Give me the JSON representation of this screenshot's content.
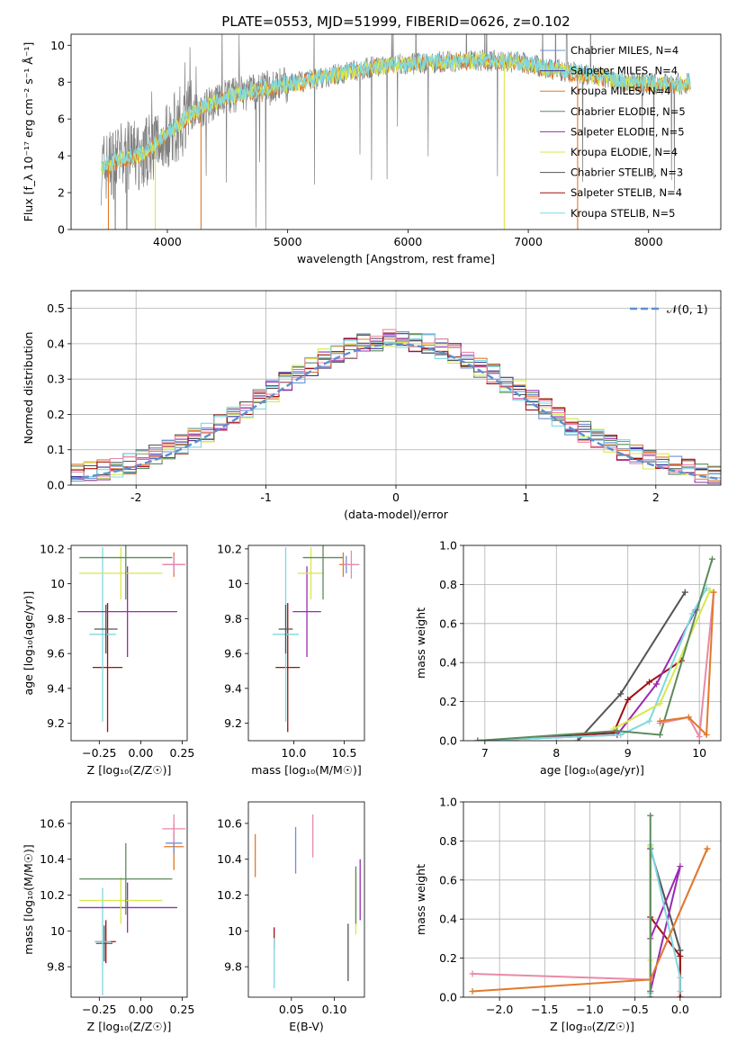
{
  "title": "PLATE=0553, MJD=51999, FIBERID=0626, z=0.102",
  "colors": [
    "#6f8fd8",
    "#3a3a9a",
    "#e07a2a",
    "#5c8a5c",
    "#9a2ab0",
    "#d8e84a",
    "#555555",
    "#a01010",
    "#7fd8e0",
    "#e88aa8"
  ],
  "chart_data": [
    {
      "id": "spectrum",
      "type": "line",
      "xlabel": "wavelength [Angstrom, rest frame]",
      "ylabel": "Flux [f_λ 10⁻¹⁷ erg cm⁻² s⁻¹ Å⁻¹]",
      "xlim": [
        3200,
        8600
      ],
      "ylim": [
        0,
        10.6
      ],
      "xticks": [
        4000,
        5000,
        6000,
        7000,
        8000
      ],
      "yticks": [
        0,
        2,
        4,
        6,
        8,
        10
      ],
      "legend_position": "right",
      "legend": [
        "Chabrier MILES, N_SSP=4",
        "Salpeter MILES, N_SSP=4",
        "Kroupa MILES, N_SSP=4",
        "Chabrier ELODIE, N_SSP=5",
        "Salpeter ELODIE, N_SSP=5",
        "Kroupa ELODIE, N_SSP=4",
        "Chabrier STELIB, N_SSP=3",
        "Salpeter STELIB, N_SSP=4",
        "Kroupa STELIB, N_SSP=5"
      ],
      "legend_colors": [
        "#6f8fd8",
        "#3a3a9a",
        "#e07a2a",
        "#5c8a5c",
        "#9a2ab0",
        "#d8e84a",
        "#555555",
        "#a01010",
        "#7fd8e0"
      ],
      "continuum": {
        "x": [
          3450,
          3600,
          3800,
          4000,
          4200,
          4500,
          4800,
          5100,
          5400,
          5700,
          6000,
          6300,
          6600,
          6900,
          7200,
          7500,
          7800,
          8100,
          8350
        ],
        "y": [
          3.3,
          3.8,
          4.1,
          5.2,
          6.3,
          7.2,
          7.6,
          8.0,
          8.4,
          8.8,
          9.0,
          9.1,
          9.2,
          9.1,
          8.7,
          8.4,
          8.0,
          7.9,
          7.9
        ]
      }
    },
    {
      "id": "residuals",
      "type": "line",
      "xlabel": "(data-model)/error",
      "ylabel": "Normed distribution",
      "xlim": [
        -2.5,
        2.5
      ],
      "ylim": [
        0,
        0.55
      ],
      "xticks": [
        -2,
        -1,
        0,
        1,
        2
      ],
      "yticks": [
        0.0,
        0.1,
        0.2,
        0.3,
        0.4,
        0.5
      ],
      "grid": true,
      "legend": [
        "𝒩(0, 1)"
      ],
      "legend_position": "top-right",
      "normal_dist": {
        "mu": 0,
        "sigma": 1
      }
    },
    {
      "id": "age_vs_Z",
      "type": "scatter",
      "xlabel": "Z [log₁₀(Z/Z☉)]",
      "ylabel": "age  [log₁₀(age/yr)]",
      "xlim": [
        -0.42,
        0.28
      ],
      "ylim": [
        9.1,
        10.22
      ],
      "xticks": [
        -0.25,
        0.0,
        0.25
      ],
      "xticklabels": [
        "−0.25",
        "0.00",
        "0.25"
      ],
      "yticks": [
        9.2,
        9.4,
        9.6,
        9.8,
        10.0,
        10.2
      ],
      "points": [
        {
          "color": "#a01010",
          "x": -0.2,
          "xerr": 0.09,
          "y": 9.52,
          "yerr": 0.37
        },
        {
          "color": "#7fd8e0",
          "x": -0.23,
          "xerr": 0.08,
          "y": 9.71,
          "yerr": 0.5
        },
        {
          "color": "#555555",
          "x": -0.21,
          "xerr": 0.07,
          "y": 9.74,
          "yerr": 0.14
        },
        {
          "color": "#9a2ab0",
          "x": -0.08,
          "xerr": 0.3,
          "y": 9.84,
          "yerr": 0.26
        },
        {
          "color": "#d8e84a",
          "x": -0.12,
          "xerr": 0.25,
          "y": 10.06,
          "yerr": 0.15
        },
        {
          "color": "#5c8a5c",
          "x": -0.09,
          "xerr": 0.28,
          "y": 10.15,
          "yerr": 0.24
        },
        {
          "color": "#e07a2a",
          "x": 0.2,
          "xerr": 0.06,
          "y": 10.11,
          "yerr": 0.07
        },
        {
          "color": "#6f8fd8",
          "x": 0.2,
          "xerr": 0.05,
          "y": 10.11,
          "yerr": 0.05
        },
        {
          "color": "#e88aa8",
          "x": 0.2,
          "xerr": 0.07,
          "y": 10.11,
          "yerr": 0.05
        }
      ]
    },
    {
      "id": "age_vs_mass",
      "type": "scatter",
      "xlabel": "mass [log₁₀(M/M☉)]",
      "ylabel": "",
      "xlim": [
        9.55,
        10.7
      ],
      "ylim": [
        9.1,
        10.22
      ],
      "xticks": [
        10.0,
        10.5
      ],
      "xticklabels": [
        "10.0",
        "10.5"
      ],
      "yticks": [
        9.2,
        9.4,
        9.6,
        9.8,
        10.0,
        10.2
      ],
      "points": [
        {
          "color": "#a01010",
          "x": 9.94,
          "xerr": 0.12,
          "y": 9.52,
          "yerr": 0.37
        },
        {
          "color": "#7fd8e0",
          "x": 9.92,
          "xerr": 0.13,
          "y": 9.71,
          "yerr": 0.5
        },
        {
          "color": "#555555",
          "x": 9.92,
          "xerr": 0.07,
          "y": 9.74,
          "yerr": 0.14
        },
        {
          "color": "#9a2ab0",
          "x": 10.13,
          "xerr": 0.14,
          "y": 9.84,
          "yerr": 0.26
        },
        {
          "color": "#d8e84a",
          "x": 10.17,
          "xerr": 0.13,
          "y": 10.06,
          "yerr": 0.15
        },
        {
          "color": "#5c8a5c",
          "x": 10.29,
          "xerr": 0.2,
          "y": 10.15,
          "yerr": 0.24
        },
        {
          "color": "#e07a2a",
          "x": 10.49,
          "xerr": 0.04,
          "y": 10.11,
          "yerr": 0.07
        },
        {
          "color": "#6f8fd8",
          "x": 10.52,
          "xerr": 0.03,
          "y": 10.11,
          "yerr": 0.05
        },
        {
          "color": "#e88aa8",
          "x": 10.57,
          "xerr": 0.08,
          "y": 10.11,
          "yerr": 0.08
        }
      ]
    },
    {
      "id": "weight_vs_age",
      "type": "line",
      "xlabel": "age  [log₁₀(age/yr)]",
      "ylabel": "mass weight",
      "xlim": [
        6.7,
        10.3
      ],
      "ylim": [
        0,
        1.0
      ],
      "xticks": [
        7,
        8,
        9,
        10
      ],
      "yticks": [
        0.0,
        0.2,
        0.4,
        0.6,
        0.8,
        1.0
      ],
      "grid": true,
      "series": [
        {
          "color": "#555555",
          "x": [
            8.3,
            8.9,
            9.8
          ],
          "y": [
            0.0,
            0.24,
            0.76
          ]
        },
        {
          "color": "#a01010",
          "x": [
            6.9,
            8.8,
            9.0,
            9.3,
            9.75
          ],
          "y": [
            0.0,
            0.04,
            0.21,
            0.3,
            0.41
          ]
        },
        {
          "color": "#9a2ab0",
          "x": [
            6.9,
            8.85,
            9.4,
            9.95
          ],
          "y": [
            0.0,
            0.03,
            0.29,
            0.67
          ]
        },
        {
          "color": "#7fd8e0",
          "x": [
            6.9,
            8.9,
            9.3,
            9.9,
            10.1
          ],
          "y": [
            0.0,
            0.03,
            0.1,
            0.65,
            0.78
          ]
        },
        {
          "color": "#d8e84a",
          "x": [
            8.8,
            9.45,
            10.15
          ],
          "y": [
            0.06,
            0.19,
            0.77
          ]
        },
        {
          "color": "#5c8a5c",
          "x": [
            6.9,
            8.85,
            9.45,
            10.18
          ],
          "y": [
            0.0,
            0.05,
            0.03,
            0.93
          ]
        },
        {
          "color": "#e88aa8",
          "x": [
            9.45,
            9.85,
            10.0,
            10.2
          ],
          "y": [
            0.09,
            0.12,
            0.02,
            0.76
          ]
        },
        {
          "color": "#e07a2a",
          "x": [
            9.45,
            9.85,
            10.1,
            10.2
          ],
          "y": [
            0.1,
            0.12,
            0.03,
            0.76
          ]
        }
      ]
    },
    {
      "id": "mass_vs_Z",
      "type": "scatter",
      "xlabel": "Z [log₁₀(Z/Z☉)]",
      "ylabel": "mass [log₁₀(M/M☉)]",
      "xlim": [
        -0.42,
        0.28
      ],
      "ylim": [
        9.63,
        10.72
      ],
      "xticks": [
        -0.25,
        0.0,
        0.25
      ],
      "xticklabels": [
        "−0.25",
        "0.00",
        "0.25"
      ],
      "yticks": [
        9.8,
        10.0,
        10.2,
        10.4,
        10.6
      ],
      "points": [
        {
          "color": "#a01010",
          "x": -0.21,
          "xerr": 0.06,
          "y": 9.94,
          "yerr": 0.12
        },
        {
          "color": "#555555",
          "x": -0.22,
          "xerr": 0.05,
          "y": 9.93,
          "yerr": 0.1
        },
        {
          "color": "#7fd8e0",
          "x": -0.23,
          "xerr": 0.05,
          "y": 9.94,
          "yerr": 0.3
        },
        {
          "color": "#9a2ab0",
          "x": -0.08,
          "xerr": 0.3,
          "y": 10.13,
          "yerr": 0.14
        },
        {
          "color": "#d8e84a",
          "x": -0.12,
          "xerr": 0.25,
          "y": 10.17,
          "yerr": 0.13
        },
        {
          "color": "#5c8a5c",
          "x": -0.09,
          "xerr": 0.28,
          "y": 10.29,
          "yerr": 0.2
        },
        {
          "color": "#e07a2a",
          "x": 0.2,
          "xerr": 0.06,
          "y": 10.47,
          "yerr": 0.13
        },
        {
          "color": "#6f8fd8",
          "x": 0.2,
          "xerr": 0.05,
          "y": 10.49,
          "yerr": 0.06
        },
        {
          "color": "#e88aa8",
          "x": 0.2,
          "xerr": 0.07,
          "y": 10.57,
          "yerr": 0.08
        }
      ]
    },
    {
      "id": "mass_vs_EBV",
      "type": "scatter",
      "xlabel": "E(B-V)",
      "ylabel": "",
      "xlim": [
        0.0,
        0.135
      ],
      "ylim": [
        9.63,
        10.72
      ],
      "xticks": [
        0.05,
        0.1
      ],
      "xticklabels": [
        "0.05",
        "0.10"
      ],
      "yticks": [
        9.8,
        10.0,
        10.2,
        10.4,
        10.6
      ],
      "points": [
        {
          "color": "#e07a2a",
          "x": 0.008,
          "y": 10.42,
          "yerr": 0.12
        },
        {
          "color": "#a01010",
          "x": 0.03,
          "y": 9.96,
          "yerr": 0.06
        },
        {
          "color": "#7fd8e0",
          "x": 0.03,
          "y": 9.82,
          "yerr": 0.14
        },
        {
          "color": "#6f8fd8",
          "x": 0.055,
          "y": 10.45,
          "yerr": 0.13
        },
        {
          "color": "#e88aa8",
          "x": 0.075,
          "y": 10.53,
          "yerr": 0.12
        },
        {
          "color": "#555555",
          "x": 0.116,
          "y": 9.88,
          "yerr": 0.16
        },
        {
          "color": "#d8e84a",
          "x": 0.125,
          "y": 10.16,
          "yerr": 0.18
        },
        {
          "color": "#5c8a5c",
          "x": 0.125,
          "y": 10.2,
          "yerr": 0.16
        },
        {
          "color": "#9a2ab0",
          "x": 0.13,
          "y": 10.23,
          "yerr": 0.17
        }
      ]
    },
    {
      "id": "weight_vs_Z",
      "type": "line",
      "xlabel": "Z [log₁₀(Z/Z☉)]",
      "ylabel": "mass weight",
      "xlim": [
        -2.4,
        0.45
      ],
      "ylim": [
        0,
        1.0
      ],
      "xticks": [
        -2.0,
        -1.5,
        -1.0,
        -0.5,
        0.0
      ],
      "xticklabels": [
        "−2.0",
        "−1.5",
        "−1.0",
        "−0.5",
        "0.0"
      ],
      "yticks": [
        0.0,
        0.2,
        0.4,
        0.6,
        0.8,
        1.0
      ],
      "grid": true,
      "series": [
        {
          "color": "#555555",
          "x": [
            -0.33,
            -0.33,
            0.0,
            0.0
          ],
          "y": [
            0.0,
            0.76,
            0.24,
            0.0
          ]
        },
        {
          "color": "#a01010",
          "x": [
            -0.33,
            0.0,
            0.0
          ],
          "y": [
            0.41,
            0.21,
            0.0
          ]
        },
        {
          "color": "#9a2ab0",
          "x": [
            -0.33,
            0.0,
            -0.33
          ],
          "y": [
            0.3,
            0.67,
            0.03
          ]
        },
        {
          "color": "#7fd8e0",
          "x": [
            -0.33,
            -0.33,
            0.0,
            0.0
          ],
          "y": [
            0.02,
            0.78,
            0.1,
            0.03
          ]
        },
        {
          "color": "#d8e84a",
          "x": [
            -0.33,
            -0.33
          ],
          "y": [
            0.19,
            0.77
          ]
        },
        {
          "color": "#5c8a5c",
          "x": [
            -0.33,
            -0.33
          ],
          "y": [
            0.03,
            0.93
          ]
        },
        {
          "color": "#e88aa8",
          "x": [
            -2.3,
            -0.33,
            0.3
          ],
          "y": [
            0.12,
            0.09,
            0.76
          ]
        },
        {
          "color": "#e07a2a",
          "x": [
            -2.3,
            -0.33,
            0.3
          ],
          "y": [
            0.03,
            0.09,
            0.76
          ]
        }
      ]
    }
  ]
}
